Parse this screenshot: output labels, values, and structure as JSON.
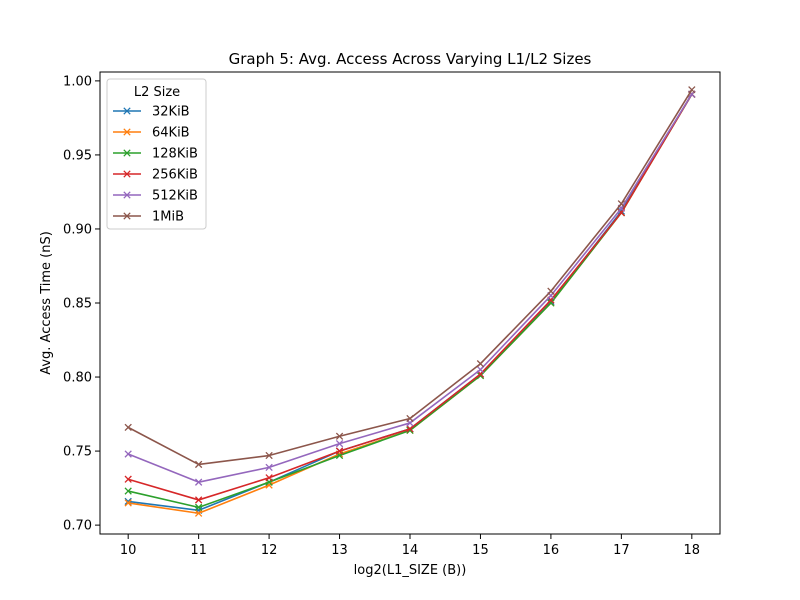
{
  "chart_data": {
    "type": "line",
    "title": "Graph 5: Avg. Access Across Varying L1/L2 Sizes",
    "xlabel": "log2(L1_SIZE (B))",
    "ylabel": "Avg. Access Time (nS)",
    "x": [
      10,
      11,
      12,
      13,
      14,
      15,
      16,
      17,
      18
    ],
    "xticks": [
      "10",
      "11",
      "12",
      "13",
      "14",
      "15",
      "16",
      "17",
      "18"
    ],
    "yticks": [
      "0.70",
      "0.75",
      "0.80",
      "0.85",
      "0.90",
      "0.95",
      "1.00"
    ],
    "xlim": [
      9.6,
      18.4
    ],
    "ylim": [
      0.694,
      1.006
    ],
    "grid": false,
    "marker": "x",
    "legend_title": "L2 Size",
    "legend_position": "upper-left",
    "series": [
      {
        "name": "32KiB",
        "color": "#1f77b4",
        "values": [
          0.716,
          0.71,
          0.729,
          0.75,
          0.765,
          0.802,
          0.851,
          0.912,
          0.991
        ]
      },
      {
        "name": "64KiB",
        "color": "#ff7f0e",
        "values": [
          0.715,
          0.708,
          0.727,
          0.748,
          0.764,
          0.801,
          0.85,
          0.911,
          0.991
        ]
      },
      {
        "name": "128KiB",
        "color": "#2ca02c",
        "values": [
          0.723,
          0.712,
          0.729,
          0.747,
          0.764,
          0.801,
          0.85,
          0.911,
          0.991
        ]
      },
      {
        "name": "256KiB",
        "color": "#d62728",
        "values": [
          0.731,
          0.717,
          0.732,
          0.75,
          0.765,
          0.802,
          0.852,
          0.911,
          0.991
        ]
      },
      {
        "name": "512KiB",
        "color": "#9467bd",
        "values": [
          0.748,
          0.729,
          0.739,
          0.755,
          0.769,
          0.805,
          0.855,
          0.914,
          0.991
        ]
      },
      {
        "name": "1MiB",
        "color": "#8c564b",
        "values": [
          0.766,
          0.741,
          0.747,
          0.76,
          0.772,
          0.809,
          0.858,
          0.917,
          0.994
        ]
      }
    ]
  }
}
